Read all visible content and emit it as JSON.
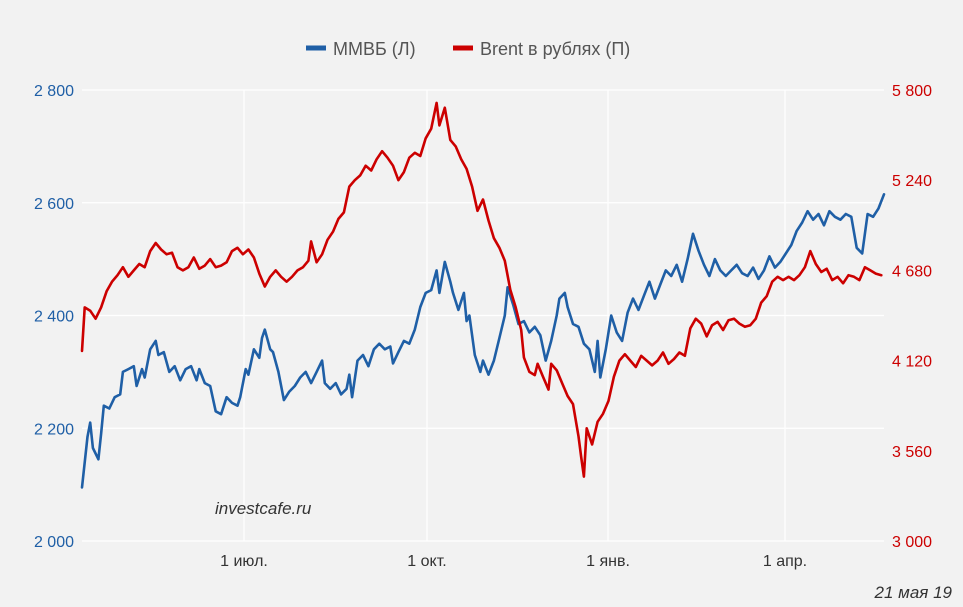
{
  "chart_data": {
    "type": "line",
    "legend_position": "top-center",
    "grid": true,
    "colors": {
      "series1": "#1f5fa6",
      "series2": "#cc0000",
      "background": "#f2f2f2",
      "grid": "#ffffff"
    },
    "x_ticks": [
      "1 июл.",
      "1 окт.",
      "1 янв.",
      "1 апр."
    ],
    "y_left": {
      "ticks": [
        "2 000",
        "2 200",
        "2 400",
        "2 600",
        "2 800"
      ],
      "range": [
        2000,
        2800
      ]
    },
    "y_right": {
      "ticks": [
        "3 000",
        "3 560",
        "4 120",
        "4 680",
        "5 240",
        "5 800"
      ],
      "range": [
        3000,
        5800
      ]
    },
    "series": [
      {
        "name": "ММВБ (Л)",
        "axis": "left",
        "points": [
          [
            0.0,
            2095
          ],
          [
            0.01,
            2185
          ],
          [
            0.015,
            2210
          ],
          [
            0.02,
            2165
          ],
          [
            0.03,
            2145
          ],
          [
            0.035,
            2190
          ],
          [
            0.04,
            2240
          ],
          [
            0.05,
            2235
          ],
          [
            0.06,
            2255
          ],
          [
            0.07,
            2260
          ],
          [
            0.075,
            2300
          ],
          [
            0.085,
            2305
          ],
          [
            0.095,
            2310
          ],
          [
            0.1,
            2275
          ],
          [
            0.11,
            2305
          ],
          [
            0.115,
            2290
          ],
          [
            0.125,
            2340
          ],
          [
            0.135,
            2355
          ],
          [
            0.14,
            2330
          ],
          [
            0.15,
            2335
          ],
          [
            0.16,
            2300
          ],
          [
            0.17,
            2310
          ],
          [
            0.18,
            2285
          ],
          [
            0.19,
            2305
          ],
          [
            0.2,
            2310
          ],
          [
            0.21,
            2285
          ],
          [
            0.215,
            2305
          ],
          [
            0.225,
            2280
          ],
          [
            0.235,
            2275
          ],
          [
            0.245,
            2230
          ],
          [
            0.255,
            2225
          ],
          [
            0.265,
            2255
          ],
          [
            0.275,
            2245
          ],
          [
            0.285,
            2240
          ],
          [
            0.29,
            2255
          ],
          [
            0.3,
            2305
          ],
          [
            0.305,
            2295
          ],
          [
            0.315,
            2340
          ],
          [
            0.325,
            2325
          ],
          [
            0.33,
            2360
          ],
          [
            0.335,
            2375
          ],
          [
            0.345,
            2340
          ],
          [
            0.35,
            2335
          ],
          [
            0.36,
            2300
          ],
          [
            0.37,
            2250
          ],
          [
            0.38,
            2265
          ],
          [
            0.39,
            2275
          ],
          [
            0.4,
            2290
          ],
          [
            0.41,
            2300
          ],
          [
            0.42,
            2280
          ],
          [
            0.43,
            2300
          ],
          [
            0.44,
            2320
          ],
          [
            0.445,
            2280
          ],
          [
            0.455,
            2270
          ],
          [
            0.465,
            2280
          ],
          [
            0.475,
            2260
          ],
          [
            0.485,
            2270
          ],
          [
            0.49,
            2295
          ],
          [
            0.495,
            2255
          ],
          [
            0.505,
            2320
          ],
          [
            0.515,
            2330
          ],
          [
            0.525,
            2310
          ],
          [
            0.535,
            2340
          ],
          [
            0.545,
            2350
          ],
          [
            0.555,
            2340
          ],
          [
            0.565,
            2345
          ],
          [
            0.57,
            2315
          ],
          [
            0.58,
            2335
          ],
          [
            0.59,
            2355
          ],
          [
            0.6,
            2350
          ],
          [
            0.61,
            2375
          ],
          [
            0.62,
            2415
          ],
          [
            0.63,
            2440
          ],
          [
            0.64,
            2445
          ],
          [
            0.65,
            2480
          ],
          [
            0.655,
            2440
          ],
          [
            0.665,
            2495
          ],
          [
            0.675,
            2460
          ],
          [
            0.68,
            2440
          ],
          [
            0.69,
            2410
          ],
          [
            0.7,
            2440
          ],
          [
            0.705,
            2390
          ],
          [
            0.71,
            2400
          ],
          [
            0.72,
            2330
          ],
          [
            0.73,
            2300
          ],
          [
            0.735,
            2320
          ],
          [
            0.745,
            2295
          ],
          [
            0.755,
            2320
          ],
          [
            0.765,
            2360
          ],
          [
            0.775,
            2400
          ],
          [
            0.78,
            2450
          ],
          [
            0.79,
            2420
          ],
          [
            0.8,
            2385
          ],
          [
            0.81,
            2390
          ],
          [
            0.82,
            2370
          ],
          [
            0.83,
            2380
          ],
          [
            0.84,
            2365
          ],
          [
            0.85,
            2320
          ],
          [
            0.86,
            2355
          ],
          [
            0.87,
            2400
          ],
          [
            0.875,
            2430
          ],
          [
            0.885,
            2440
          ],
          [
            0.89,
            2415
          ],
          [
            0.9,
            2385
          ],
          [
            0.91,
            2380
          ],
          [
            0.92,
            2350
          ],
          [
            0.93,
            2340
          ],
          [
            0.94,
            2300
          ],
          [
            0.945,
            2355
          ],
          [
            0.95,
            2290
          ],
          [
            0.96,
            2340
          ],
          [
            0.97,
            2400
          ],
          [
            0.98,
            2370
          ],
          [
            0.99,
            2355
          ],
          [
            1.0,
            2405
          ],
          [
            1.01,
            2430
          ],
          [
            1.02,
            2410
          ],
          [
            1.03,
            2435
          ],
          [
            1.04,
            2460
          ],
          [
            1.05,
            2430
          ],
          [
            1.06,
            2455
          ],
          [
            1.07,
            2480
          ],
          [
            1.08,
            2470
          ],
          [
            1.09,
            2490
          ],
          [
            1.1,
            2460
          ],
          [
            1.11,
            2500
          ],
          [
            1.12,
            2545
          ],
          [
            1.13,
            2515
          ],
          [
            1.14,
            2490
          ],
          [
            1.15,
            2470
          ],
          [
            1.16,
            2500
          ],
          [
            1.17,
            2480
          ],
          [
            1.18,
            2470
          ],
          [
            1.19,
            2480
          ],
          [
            1.2,
            2490
          ],
          [
            1.21,
            2475
          ],
          [
            1.22,
            2470
          ],
          [
            1.23,
            2485
          ],
          [
            1.24,
            2465
          ],
          [
            1.25,
            2480
          ],
          [
            1.26,
            2505
          ],
          [
            1.27,
            2485
          ],
          [
            1.28,
            2495
          ],
          [
            1.29,
            2510
          ],
          [
            1.3,
            2525
          ],
          [
            1.31,
            2550
          ],
          [
            1.32,
            2565
          ],
          [
            1.33,
            2585
          ],
          [
            1.34,
            2570
          ],
          [
            1.35,
            2580
          ],
          [
            1.36,
            2560
          ],
          [
            1.37,
            2585
          ],
          [
            1.38,
            2575
          ],
          [
            1.39,
            2570
          ],
          [
            1.4,
            2580
          ],
          [
            1.41,
            2575
          ],
          [
            1.42,
            2520
          ],
          [
            1.43,
            2510
          ],
          [
            1.44,
            2580
          ],
          [
            1.45,
            2575
          ],
          [
            1.46,
            2590
          ],
          [
            1.47,
            2615
          ]
        ]
      },
      {
        "name": "Brent в рублях (П)",
        "axis": "right",
        "points": [
          [
            0.0,
            4180
          ],
          [
            0.005,
            4450
          ],
          [
            0.015,
            4430
          ],
          [
            0.025,
            4380
          ],
          [
            0.035,
            4450
          ],
          [
            0.045,
            4550
          ],
          [
            0.055,
            4610
          ],
          [
            0.065,
            4650
          ],
          [
            0.075,
            4700
          ],
          [
            0.085,
            4640
          ],
          [
            0.095,
            4680
          ],
          [
            0.105,
            4720
          ],
          [
            0.115,
            4700
          ],
          [
            0.125,
            4800
          ],
          [
            0.135,
            4850
          ],
          [
            0.145,
            4810
          ],
          [
            0.155,
            4780
          ],
          [
            0.165,
            4790
          ],
          [
            0.175,
            4700
          ],
          [
            0.185,
            4680
          ],
          [
            0.195,
            4700
          ],
          [
            0.205,
            4760
          ],
          [
            0.215,
            4690
          ],
          [
            0.225,
            4710
          ],
          [
            0.235,
            4750
          ],
          [
            0.245,
            4700
          ],
          [
            0.255,
            4710
          ],
          [
            0.265,
            4730
          ],
          [
            0.275,
            4800
          ],
          [
            0.285,
            4820
          ],
          [
            0.295,
            4780
          ],
          [
            0.305,
            4810
          ],
          [
            0.315,
            4760
          ],
          [
            0.325,
            4660
          ],
          [
            0.335,
            4580
          ],
          [
            0.345,
            4640
          ],
          [
            0.355,
            4680
          ],
          [
            0.365,
            4640
          ],
          [
            0.375,
            4610
          ],
          [
            0.385,
            4640
          ],
          [
            0.395,
            4680
          ],
          [
            0.405,
            4700
          ],
          [
            0.415,
            4740
          ],
          [
            0.42,
            4860
          ],
          [
            0.43,
            4730
          ],
          [
            0.44,
            4780
          ],
          [
            0.45,
            4870
          ],
          [
            0.46,
            4920
          ],
          [
            0.47,
            5000
          ],
          [
            0.48,
            5040
          ],
          [
            0.49,
            5200
          ],
          [
            0.5,
            5240
          ],
          [
            0.51,
            5270
          ],
          [
            0.52,
            5330
          ],
          [
            0.53,
            5300
          ],
          [
            0.54,
            5370
          ],
          [
            0.55,
            5420
          ],
          [
            0.56,
            5380
          ],
          [
            0.57,
            5330
          ],
          [
            0.58,
            5240
          ],
          [
            0.59,
            5290
          ],
          [
            0.6,
            5380
          ],
          [
            0.61,
            5410
          ],
          [
            0.62,
            5390
          ],
          [
            0.63,
            5500
          ],
          [
            0.64,
            5560
          ],
          [
            0.65,
            5720
          ],
          [
            0.655,
            5580
          ],
          [
            0.665,
            5690
          ],
          [
            0.675,
            5490
          ],
          [
            0.685,
            5450
          ],
          [
            0.695,
            5370
          ],
          [
            0.705,
            5310
          ],
          [
            0.715,
            5200
          ],
          [
            0.725,
            5050
          ],
          [
            0.735,
            5120
          ],
          [
            0.745,
            4990
          ],
          [
            0.755,
            4880
          ],
          [
            0.765,
            4820
          ],
          [
            0.775,
            4740
          ],
          [
            0.785,
            4560
          ],
          [
            0.795,
            4450
          ],
          [
            0.805,
            4310
          ],
          [
            0.81,
            4140
          ],
          [
            0.82,
            4050
          ],
          [
            0.83,
            4030
          ],
          [
            0.835,
            4100
          ],
          [
            0.845,
            4020
          ],
          [
            0.855,
            3940
          ],
          [
            0.86,
            4100
          ],
          [
            0.87,
            4060
          ],
          [
            0.88,
            3980
          ],
          [
            0.89,
            3900
          ],
          [
            0.9,
            3850
          ],
          [
            0.91,
            3650
          ],
          [
            0.915,
            3520
          ],
          [
            0.92,
            3400
          ],
          [
            0.925,
            3700
          ],
          [
            0.935,
            3600
          ],
          [
            0.945,
            3740
          ],
          [
            0.955,
            3790
          ],
          [
            0.965,
            3870
          ],
          [
            0.975,
            4020
          ],
          [
            0.985,
            4120
          ],
          [
            0.995,
            4160
          ],
          [
            1.005,
            4120
          ],
          [
            1.015,
            4080
          ],
          [
            1.025,
            4150
          ],
          [
            1.035,
            4120
          ],
          [
            1.045,
            4090
          ],
          [
            1.055,
            4120
          ],
          [
            1.065,
            4170
          ],
          [
            1.075,
            4100
          ],
          [
            1.085,
            4130
          ],
          [
            1.095,
            4170
          ],
          [
            1.105,
            4150
          ],
          [
            1.115,
            4320
          ],
          [
            1.125,
            4380
          ],
          [
            1.135,
            4350
          ],
          [
            1.145,
            4270
          ],
          [
            1.155,
            4340
          ],
          [
            1.165,
            4360
          ],
          [
            1.175,
            4310
          ],
          [
            1.185,
            4370
          ],
          [
            1.195,
            4380
          ],
          [
            1.205,
            4350
          ],
          [
            1.215,
            4330
          ],
          [
            1.225,
            4340
          ],
          [
            1.235,
            4380
          ],
          [
            1.245,
            4480
          ],
          [
            1.255,
            4520
          ],
          [
            1.265,
            4610
          ],
          [
            1.275,
            4640
          ],
          [
            1.285,
            4620
          ],
          [
            1.295,
            4640
          ],
          [
            1.305,
            4620
          ],
          [
            1.315,
            4650
          ],
          [
            1.325,
            4700
          ],
          [
            1.335,
            4800
          ],
          [
            1.345,
            4720
          ],
          [
            1.355,
            4670
          ],
          [
            1.365,
            4690
          ],
          [
            1.375,
            4620
          ],
          [
            1.385,
            4640
          ],
          [
            1.395,
            4600
          ],
          [
            1.405,
            4650
          ],
          [
            1.415,
            4640
          ],
          [
            1.425,
            4620
          ],
          [
            1.435,
            4700
          ],
          [
            1.445,
            4680
          ],
          [
            1.455,
            4660
          ],
          [
            1.465,
            4650
          ]
        ]
      }
    ]
  },
  "watermark": "investcafe.ru",
  "date_stamp": "21 мая 19"
}
